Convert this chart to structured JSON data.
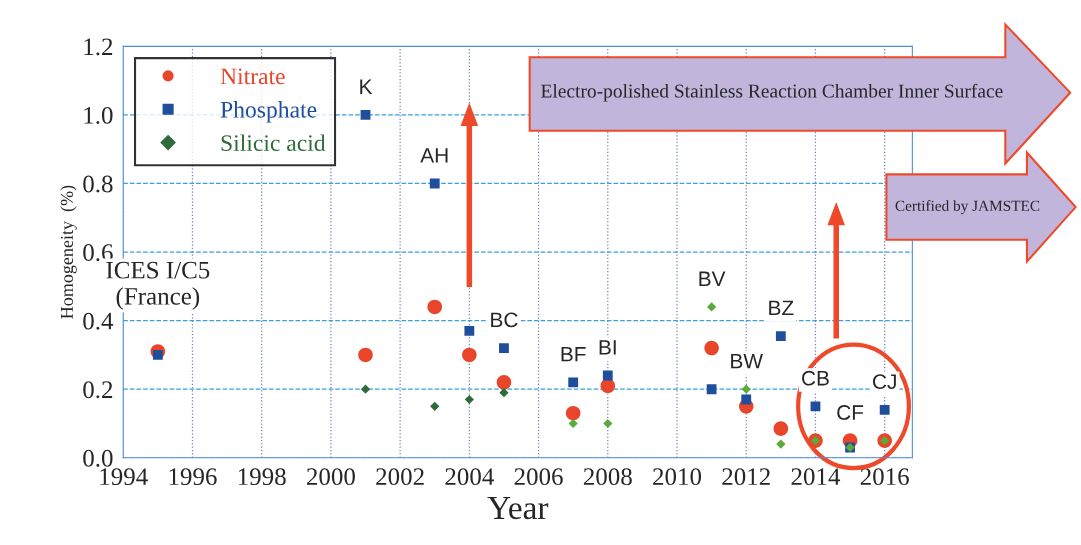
{
  "chart_data": {
    "type": "scatter",
    "xlabel": "Year",
    "ylabel": "Homogeneity  (%)",
    "x": [
      1995,
      2001,
      2003,
      2004,
      2005,
      2007,
      2008,
      2011,
      2012,
      2013,
      2014,
      2015,
      2016
    ],
    "series": [
      {
        "name": "Nitrate",
        "color": "#e8452a",
        "marker": "circle",
        "values": [
          0.31,
          0.3,
          0.44,
          0.3,
          0.22,
          0.13,
          0.21,
          0.32,
          0.15,
          0.085,
          0.05,
          0.05,
          0.05
        ]
      },
      {
        "name": "Phosphate",
        "color": "#1f4e9c",
        "marker": "square",
        "values": [
          0.3,
          1.0,
          0.8,
          0.37,
          0.32,
          0.22,
          0.24,
          0.2,
          0.17,
          0.355,
          0.15,
          0.03,
          0.14
        ]
      },
      {
        "name": "Silicic acid",
        "color": "#2e6b3a",
        "marker": "diamond",
        "colors": [
          null,
          "#2e6b3a",
          "#2e6b3a",
          "#2e6b3a",
          "#2e6b3a",
          "#5aab3a",
          "#5aab3a",
          "#5aab3a",
          "#5aab3a",
          "#5aab3a",
          "#5aab3a",
          "#5aab3a",
          "#5aab3a"
        ],
        "values": [
          null,
          0.2,
          0.15,
          0.17,
          0.19,
          0.1,
          0.1,
          0.44,
          0.2,
          0.04,
          0.05,
          0.03,
          0.05
        ]
      }
    ],
    "xlim": [
      1994,
      2016.8
    ],
    "xticks": [
      1994,
      1996,
      1998,
      2000,
      2002,
      2004,
      2006,
      2008,
      2010,
      2012,
      2014,
      2016
    ],
    "ylim": [
      0,
      1.2
    ],
    "yticks": [
      {
        "value": 0,
        "label": "0.0"
      },
      {
        "value": 0.2,
        "label": "0.2"
      },
      {
        "value": 0.4,
        "label": "0.4"
      },
      {
        "value": 0.6,
        "label": "0.6"
      },
      {
        "value": 0.8,
        "label": "0.8"
      },
      {
        "value": 1.0,
        "label": "1.0"
      },
      {
        "value": 1.2,
        "label": "1.2"
      }
    ],
    "grid": true,
    "legend": "top left",
    "annotations": [
      "Electro-polished Stainless Reaction Chamber Inner Surface",
      "Certified by JAMSTEC",
      {
        "text": "ICES I/C5\n(France)",
        "x": 1995,
        "y": 0.31
      },
      {
        "text": "K",
        "x": 2001,
        "y": 1.0
      },
      {
        "text": "AH",
        "x": 2003,
        "y": 0.8
      },
      {
        "text": "BC",
        "x": 2005,
        "y": 0.32
      },
      {
        "text": "BF",
        "x": 2007,
        "y": 0.22
      },
      {
        "text": "BI",
        "x": 2008,
        "y": 0.24
      },
      {
        "text": "BV",
        "x": 2011,
        "y": 0.44
      },
      {
        "text": "BW",
        "x": 2012,
        "y": 0.2
      },
      {
        "text": "BZ",
        "x": 2013,
        "y": 0.355
      },
      {
        "text": "CB",
        "x": 2014,
        "y": 0.15
      },
      {
        "text": "CF",
        "x": 2015,
        "y": 0.05
      },
      {
        "text": "CJ",
        "x": 2016,
        "y": 0.14
      }
    ]
  }
}
